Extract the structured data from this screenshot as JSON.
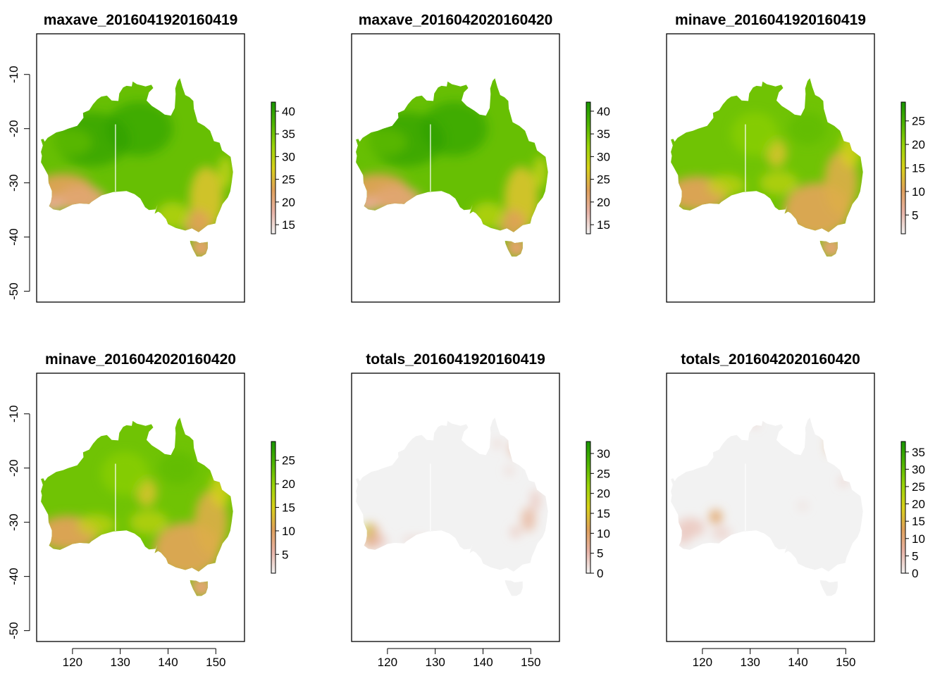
{
  "figure": {
    "x_axis_ticks": [
      "120",
      "130",
      "140",
      "150"
    ],
    "y_axis_ticks": [
      "-10",
      "-20",
      "-30",
      "-40",
      "-50"
    ],
    "extent": {
      "lon": [
        112.5,
        156
      ],
      "lat": [
        -52,
        -2.5
      ]
    }
  },
  "chart_data": [
    {
      "type": "heatmap",
      "title": "maxave_2016041920160419",
      "colorbar": {
        "range": [
          13,
          42
        ],
        "ticks": [
          "15",
          "20",
          "25",
          "30",
          "35",
          "40"
        ]
      },
      "pattern": "hot-north",
      "show_x_axis": false,
      "show_y_axis": true
    },
    {
      "type": "heatmap",
      "title": "maxave_2016042020160420",
      "colorbar": {
        "range": [
          13,
          42
        ],
        "ticks": [
          "15",
          "20",
          "25",
          "30",
          "35",
          "40"
        ]
      },
      "pattern": "hot-north",
      "show_x_axis": false,
      "show_y_axis": false
    },
    {
      "type": "heatmap",
      "title": "minave_2016041920160419",
      "colorbar": {
        "range": [
          1,
          29
        ],
        "ticks": [
          "5",
          "10",
          "15",
          "20",
          "25"
        ]
      },
      "pattern": "min-temp",
      "show_x_axis": false,
      "show_y_axis": false
    },
    {
      "type": "heatmap",
      "title": "minave_2016042020160420",
      "colorbar": {
        "range": [
          1,
          29
        ],
        "ticks": [
          "5",
          "10",
          "15",
          "20",
          "25"
        ]
      },
      "pattern": "min-temp",
      "show_x_axis": true,
      "show_y_axis": true
    },
    {
      "type": "heatmap",
      "title": "totals_2016041920160419",
      "colorbar": {
        "range": [
          0,
          33
        ],
        "ticks": [
          "0",
          "5",
          "10",
          "15",
          "20",
          "25",
          "30"
        ]
      },
      "pattern": "rain-a",
      "show_x_axis": true,
      "show_y_axis": false
    },
    {
      "type": "heatmap",
      "title": "totals_2016042020160420",
      "colorbar": {
        "range": [
          0,
          38
        ],
        "ticks": [
          "0",
          "5",
          "10",
          "15",
          "20",
          "25",
          "30",
          "35"
        ]
      },
      "pattern": "rain-b",
      "show_x_axis": true,
      "show_y_axis": false
    }
  ],
  "colors": {
    "ramp": [
      "#f2f2f2",
      "#e8b3a6",
      "#dfa05a",
      "#d8d21a",
      "#99d40a",
      "#4fb500",
      "#199400"
    ],
    "land_dry": "#eeeeee"
  }
}
